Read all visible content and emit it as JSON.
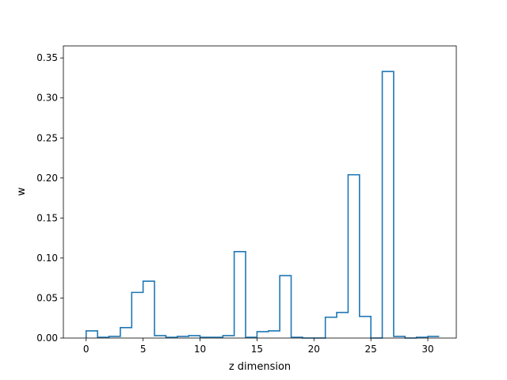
{
  "chart_data": {
    "type": "step",
    "title": "",
    "xlabel": "z dimension",
    "ylabel": "w",
    "xlim": [
      -2.0,
      32.5
    ],
    "ylim": [
      0.0,
      0.365
    ],
    "xticks": [
      0,
      5,
      10,
      15,
      20,
      25,
      30
    ],
    "yticks": [
      0.0,
      0.05,
      0.1,
      0.15,
      0.2,
      0.25,
      0.3,
      0.35
    ],
    "xtick_labels": [
      "0",
      "5",
      "10",
      "15",
      "20",
      "25",
      "30"
    ],
    "ytick_labels": [
      "0.00",
      "0.05",
      "0.10",
      "0.15",
      "0.20",
      "0.25",
      "0.30",
      "0.35"
    ],
    "grid": false,
    "line_color": "#1f77b4",
    "series": [
      {
        "x": [
          0,
          1,
          2,
          3,
          4,
          5,
          6,
          7,
          8,
          9,
          10,
          11,
          12,
          13,
          14,
          15,
          16,
          17,
          18,
          19,
          20,
          21,
          22,
          23,
          24,
          25,
          26,
          27,
          28,
          29,
          30,
          31
        ],
        "values": [
          0.0,
          0.009,
          0.001,
          0.002,
          0.013,
          0.057,
          0.071,
          0.003,
          0.001,
          0.002,
          0.003,
          0.001,
          0.001,
          0.003,
          0.108,
          0.001,
          0.008,
          0.009,
          0.078,
          0.001,
          0.0,
          0.0,
          0.026,
          0.032,
          0.204,
          0.027,
          0.0,
          0.333,
          0.002,
          0.0,
          0.001,
          0.002
        ]
      }
    ]
  }
}
